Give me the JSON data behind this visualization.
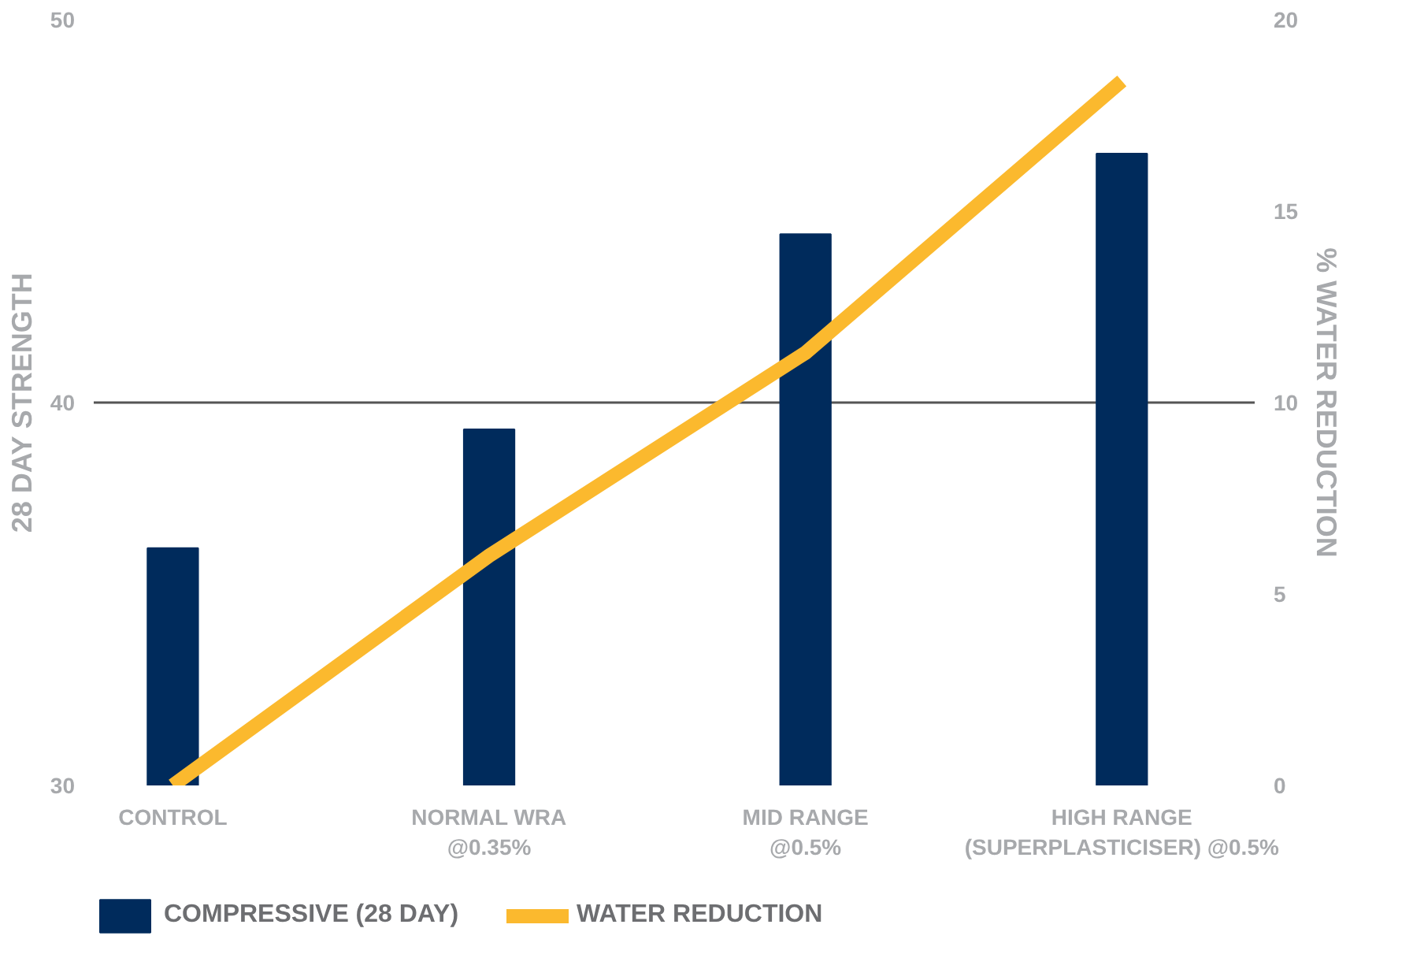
{
  "chart_data": {
    "type": "bar",
    "categories": [
      "CONTROL",
      "NORMAL WRA\n@0.35%",
      "MID RANGE\n@0.5%",
      "HIGH RANGE\n(SUPERPLASTICISER) @0.5%"
    ],
    "ylabel": "28 DAY STRENGTH",
    "y2label": "% WATER REDUCTION",
    "ylim": [
      30,
      50
    ],
    "yticks": [
      30,
      40,
      50
    ],
    "y2lim": [
      0,
      20
    ],
    "y2ticks": [
      0,
      5,
      10,
      15,
      20
    ],
    "grid": "y",
    "legend": "bottom",
    "series": [
      {
        "name": "COMPRESSIVE (28 DAY)",
        "color": "#002b5c",
        "values": [
          36.2,
          39.3,
          44.4,
          46.5
        ]
      },
      {
        "name": "WATER REDUCTION",
        "type": "line",
        "axis": "y2",
        "color": "#fbb92e",
        "values": [
          0,
          6.0,
          11.3,
          18.4
        ]
      }
    ]
  }
}
